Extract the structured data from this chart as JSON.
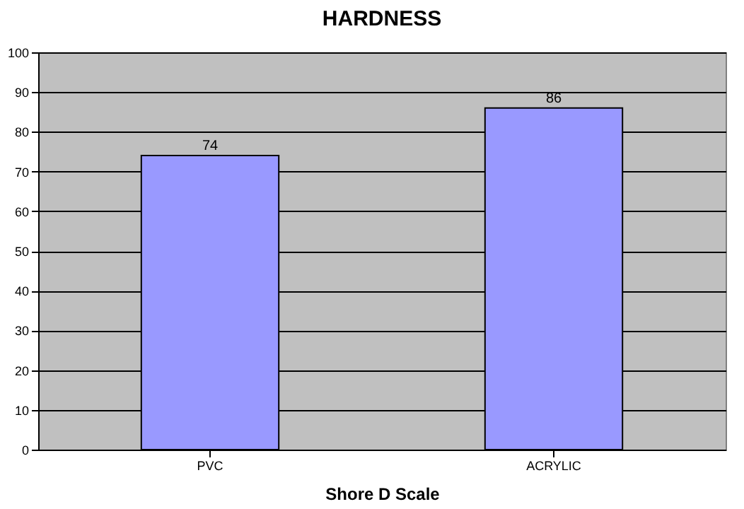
{
  "chart_data": {
    "type": "bar",
    "title": "HARDNESS",
    "xlabel": "Shore D Scale",
    "categories": [
      "PVC",
      "ACRYLIC"
    ],
    "series": [
      {
        "color": "#9999ff",
        "values": [
          74,
          86
        ]
      }
    ],
    "ylim": [
      0,
      100
    ],
    "yticks": [
      0,
      10,
      20,
      30,
      40,
      50,
      60,
      70,
      80,
      90,
      100
    ],
    "grid": "y",
    "data_labels": true
  }
}
